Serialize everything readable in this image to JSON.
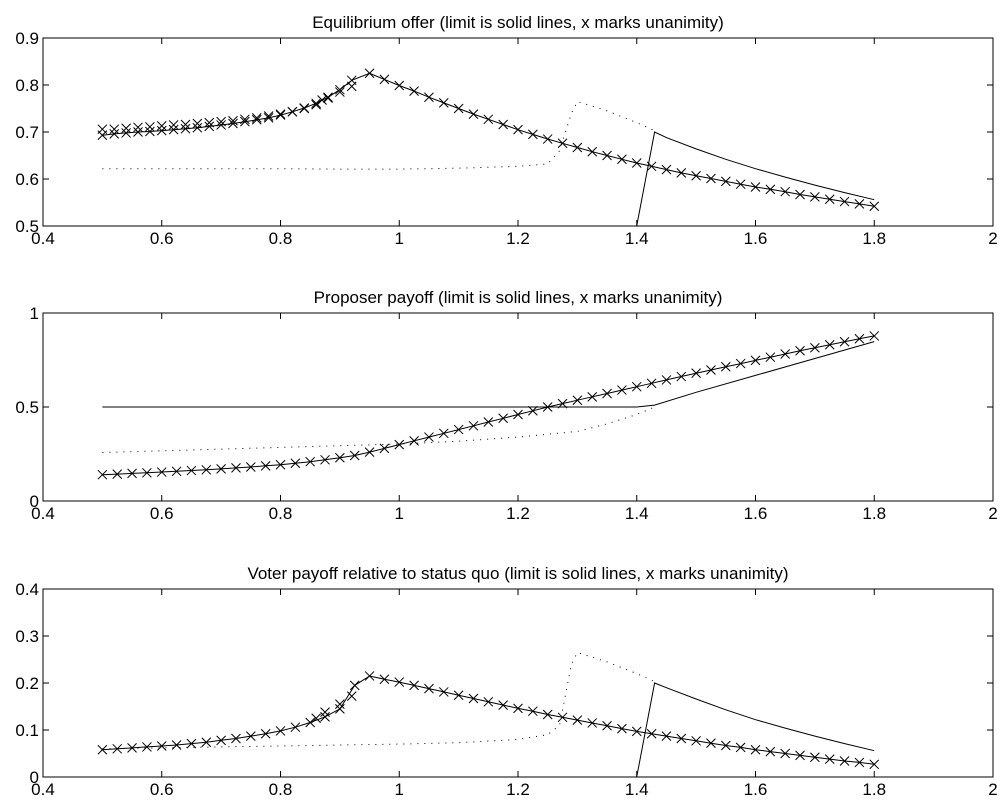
{
  "chart_data": [
    {
      "type": "line",
      "title": "Equilibrium offer (limit is solid lines, x marks unanimity)",
      "xlim": [
        0.4,
        2
      ],
      "ylim": [
        0.5,
        0.9
      ],
      "xticks": [
        "0.4",
        "0.6",
        "0.8",
        "1",
        "1.2",
        "1.4",
        "1.6",
        "1.8",
        "2"
      ],
      "yticks": [
        "0.5",
        "0.6",
        "0.7",
        "0.8",
        "0.9"
      ],
      "series": [
        {
          "style": "solid-x",
          "x": [
            0.5,
            0.52,
            0.54,
            0.56,
            0.58,
            0.6,
            0.62,
            0.64,
            0.66,
            0.68,
            0.7,
            0.72,
            0.74,
            0.76,
            0.78,
            0.8,
            0.82,
            0.84,
            0.86,
            0.88,
            0.9,
            0.92,
            0.95,
            0.975,
            1.0,
            1.025,
            1.05,
            1.075,
            1.1,
            1.125,
            1.15,
            1.175,
            1.2,
            1.225,
            1.25,
            1.275,
            1.3,
            1.325,
            1.35,
            1.375,
            1.4,
            1.425,
            1.45,
            1.475,
            1.5,
            1.525,
            1.55,
            1.575,
            1.6,
            1.625,
            1.65,
            1.675,
            1.7,
            1.725,
            1.75,
            1.775,
            1.8
          ],
          "y": [
            0.693,
            0.696,
            0.698,
            0.7,
            0.701,
            0.703,
            0.705,
            0.707,
            0.709,
            0.712,
            0.715,
            0.718,
            0.722,
            0.726,
            0.73,
            0.736,
            0.743,
            0.751,
            0.761,
            0.774,
            0.79,
            0.81,
            0.825,
            0.812,
            0.799,
            0.787,
            0.774,
            0.762,
            0.75,
            0.738,
            0.727,
            0.716,
            0.705,
            0.695,
            0.685,
            0.676,
            0.667,
            0.658,
            0.65,
            0.642,
            0.634,
            0.627,
            0.62,
            0.613,
            0.607,
            0.601,
            0.595,
            0.589,
            0.583,
            0.578,
            0.573,
            0.567,
            0.562,
            0.557,
            0.552,
            0.547,
            0.542
          ]
        },
        {
          "style": "x-only",
          "x": [
            0.5,
            0.52,
            0.54,
            0.56,
            0.58,
            0.6,
            0.62,
            0.64,
            0.66,
            0.68,
            0.7,
            0.72,
            0.74,
            0.76,
            0.78,
            0.8,
            0.82,
            0.84,
            0.86,
            0.87,
            0.88,
            0.9,
            0.92
          ],
          "y": [
            0.706,
            0.706,
            0.708,
            0.71,
            0.711,
            0.713,
            0.715,
            0.716,
            0.718,
            0.72,
            0.722,
            0.724,
            0.727,
            0.73,
            0.734,
            0.738,
            0.743,
            0.75,
            0.758,
            0.768,
            0.772,
            0.785,
            0.797
          ]
        },
        {
          "style": "solid",
          "x": [
            1.4,
            1.43,
            1.45,
            1.5,
            1.55,
            1.6,
            1.65,
            1.7,
            1.75,
            1.8
          ],
          "y": [
            0.5,
            0.7,
            0.688,
            0.664,
            0.642,
            0.622,
            0.604,
            0.587,
            0.571,
            0.556
          ]
        },
        {
          "style": "dotted",
          "x": [
            0.5,
            0.6,
            0.7,
            0.8,
            0.9,
            1.0,
            1.1,
            1.2,
            1.25,
            1.27,
            1.29,
            1.3,
            1.35,
            1.4,
            1.43
          ],
          "y": [
            0.622,
            0.622,
            0.622,
            0.622,
            0.621,
            0.621,
            0.623,
            0.627,
            0.632,
            0.66,
            0.74,
            0.765,
            0.745,
            0.72,
            0.703
          ]
        }
      ]
    },
    {
      "type": "line",
      "title": "Proposer payoff (limit is solid lines, x marks unanimity)",
      "xlim": [
        0.4,
        2
      ],
      "ylim": [
        0,
        1
      ],
      "xticks": [
        "0.4",
        "0.6",
        "0.8",
        "1",
        "1.2",
        "1.4",
        "1.6",
        "1.8",
        "2"
      ],
      "yticks": [
        "0",
        "0.5",
        "1"
      ],
      "series": [
        {
          "style": "solid-x",
          "x": [
            0.5,
            0.525,
            0.55,
            0.575,
            0.6,
            0.625,
            0.65,
            0.675,
            0.7,
            0.725,
            0.75,
            0.775,
            0.8,
            0.825,
            0.85,
            0.875,
            0.9,
            0.925,
            0.95,
            0.975,
            1.0,
            1.025,
            1.05,
            1.075,
            1.1,
            1.125,
            1.15,
            1.175,
            1.2,
            1.225,
            1.25,
            1.275,
            1.3,
            1.325,
            1.35,
            1.375,
            1.4,
            1.425,
            1.45,
            1.475,
            1.5,
            1.525,
            1.55,
            1.575,
            1.6,
            1.625,
            1.65,
            1.675,
            1.7,
            1.725,
            1.75,
            1.775,
            1.8
          ],
          "y": [
            0.14,
            0.143,
            0.147,
            0.15,
            0.154,
            0.158,
            0.162,
            0.166,
            0.171,
            0.176,
            0.181,
            0.187,
            0.193,
            0.201,
            0.209,
            0.219,
            0.23,
            0.242,
            0.26,
            0.28,
            0.3,
            0.32,
            0.34,
            0.36,
            0.38,
            0.4,
            0.42,
            0.44,
            0.46,
            0.48,
            0.5,
            0.518,
            0.536,
            0.554,
            0.572,
            0.59,
            0.608,
            0.626,
            0.644,
            0.662,
            0.68,
            0.697,
            0.714,
            0.731,
            0.748,
            0.765,
            0.782,
            0.799,
            0.815,
            0.831,
            0.847,
            0.863,
            0.878
          ]
        },
        {
          "style": "solid",
          "x": [
            0.5,
            1.0,
            1.2,
            1.4,
            1.43,
            1.5,
            1.6,
            1.7,
            1.8
          ],
          "y": [
            0.5,
            0.5,
            0.5,
            0.5,
            0.51,
            0.578,
            0.668,
            0.758,
            0.848
          ]
        },
        {
          "style": "dotted",
          "x": [
            0.5,
            0.6,
            0.7,
            0.8,
            0.9,
            1.0,
            1.1,
            1.2,
            1.3,
            1.35,
            1.4,
            1.43
          ],
          "y": [
            0.258,
            0.267,
            0.276,
            0.285,
            0.294,
            0.303,
            0.318,
            0.34,
            0.37,
            0.41,
            0.46,
            0.5
          ]
        }
      ]
    },
    {
      "type": "line",
      "title": "Voter payoff relative to status quo (limit is solid lines, x marks unanimity)",
      "xlim": [
        0.4,
        2
      ],
      "ylim": [
        0,
        0.4
      ],
      "xticks": [
        "0.4",
        "0.6",
        "0.8",
        "1",
        "1.2",
        "1.4",
        "1.6",
        "1.8",
        "2"
      ],
      "yticks": [
        "0",
        "0.1",
        "0.2",
        "0.3",
        "0.4"
      ],
      "series": [
        {
          "style": "solid-x",
          "x": [
            0.5,
            0.525,
            0.55,
            0.575,
            0.6,
            0.625,
            0.65,
            0.675,
            0.7,
            0.725,
            0.75,
            0.775,
            0.8,
            0.825,
            0.85,
            0.875,
            0.9,
            0.925,
            0.95,
            0.975,
            1.0,
            1.025,
            1.05,
            1.075,
            1.1,
            1.125,
            1.15,
            1.175,
            1.2,
            1.225,
            1.25,
            1.275,
            1.3,
            1.325,
            1.35,
            1.375,
            1.4,
            1.425,
            1.45,
            1.475,
            1.5,
            1.525,
            1.55,
            1.575,
            1.6,
            1.625,
            1.65,
            1.675,
            1.7,
            1.725,
            1.75,
            1.775,
            1.8
          ],
          "y": [
            0.058,
            0.06,
            0.062,
            0.064,
            0.066,
            0.068,
            0.071,
            0.074,
            0.078,
            0.082,
            0.087,
            0.092,
            0.098,
            0.106,
            0.116,
            0.128,
            0.145,
            0.195,
            0.215,
            0.208,
            0.202,
            0.195,
            0.188,
            0.181,
            0.174,
            0.167,
            0.16,
            0.153,
            0.146,
            0.14,
            0.133,
            0.127,
            0.121,
            0.115,
            0.109,
            0.103,
            0.097,
            0.092,
            0.087,
            0.082,
            0.077,
            0.072,
            0.067,
            0.063,
            0.058,
            0.054,
            0.05,
            0.046,
            0.042,
            0.038,
            0.034,
            0.031,
            0.027
          ]
        },
        {
          "style": "x-only",
          "x": [
            0.86,
            0.875,
            0.9,
            0.92
          ],
          "y": [
            0.125,
            0.138,
            0.155,
            0.172
          ]
        },
        {
          "style": "solid",
          "x": [
            1.4,
            1.43,
            1.45,
            1.5,
            1.55,
            1.6,
            1.65,
            1.7,
            1.75,
            1.8
          ],
          "y": [
            0.0,
            0.2,
            0.19,
            0.166,
            0.143,
            0.122,
            0.104,
            0.087,
            0.071,
            0.056
          ]
        },
        {
          "style": "dotted",
          "x": [
            0.5,
            0.6,
            0.7,
            0.8,
            0.9,
            1.0,
            1.1,
            1.2,
            1.25,
            1.27,
            1.29,
            1.3,
            1.35,
            1.4,
            1.43
          ],
          "y": [
            0.06,
            0.062,
            0.064,
            0.066,
            0.068,
            0.07,
            0.073,
            0.08,
            0.09,
            0.11,
            0.24,
            0.265,
            0.245,
            0.22,
            0.203
          ]
        }
      ]
    }
  ]
}
